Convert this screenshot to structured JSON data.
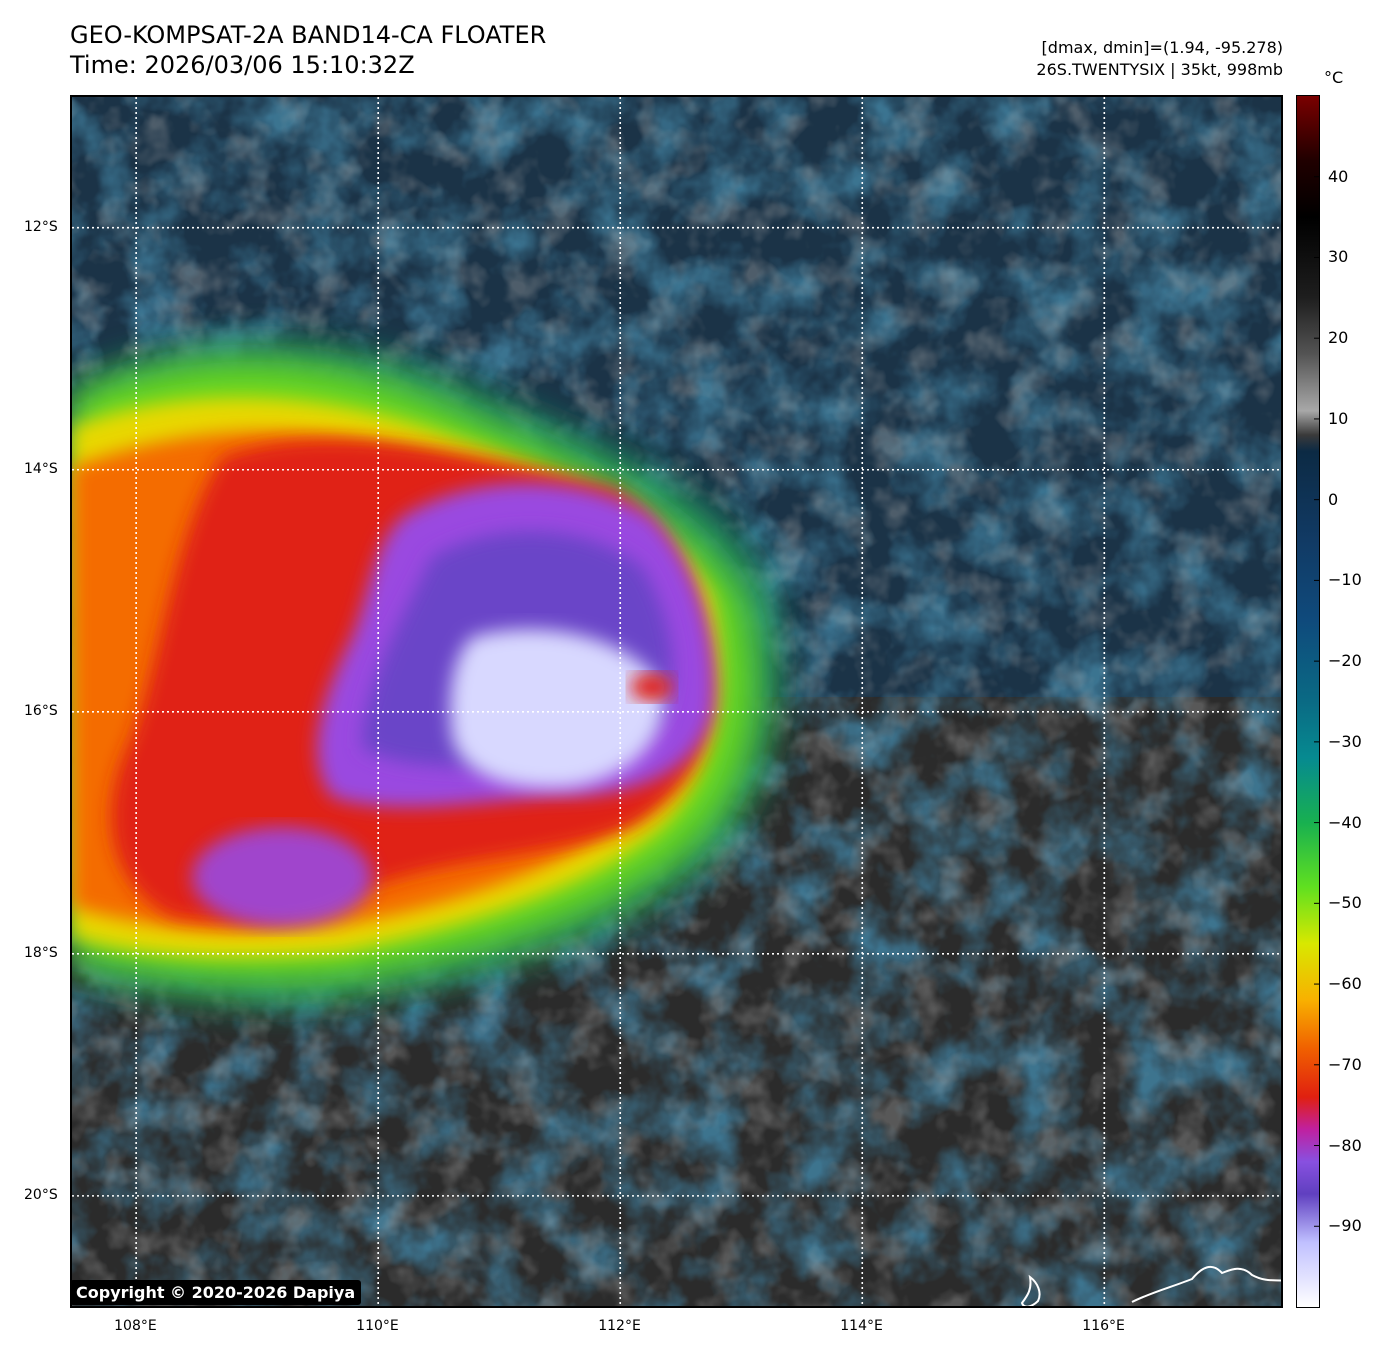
{
  "title": {
    "line1": "GEO-KOMPSAT-2A BAND14-CA FLOATER",
    "line2": "Time: 2026/03/06 15:10:32Z"
  },
  "info": {
    "line1": "[dmax, dmin]=(1.94, -95.278)",
    "line2": "26S.TWENTYSIX | 35kt, 998mb"
  },
  "copyright": "Copyright © 2020-2026 Dapiya",
  "map_extent": {
    "lon_min": 107.47,
    "lon_max": 117.46,
    "lat_max": -10.92,
    "lat_min": -20.91
  },
  "lon_ticks": [
    {
      "value": 108,
      "label": "108°E"
    },
    {
      "value": 110,
      "label": "110°E"
    },
    {
      "value": 112,
      "label": "112°E"
    },
    {
      "value": 114,
      "label": "114°E"
    },
    {
      "value": 116,
      "label": "116°E"
    }
  ],
  "lat_ticks": [
    {
      "value": -12,
      "label": "12°S"
    },
    {
      "value": -14,
      "label": "14°S"
    },
    {
      "value": -16,
      "label": "16°S"
    },
    {
      "value": -18,
      "label": "18°S"
    },
    {
      "value": -20,
      "label": "20°S"
    }
  ],
  "colorbar": {
    "unit": "°C",
    "min": -100,
    "max": 50,
    "ticks": [
      40,
      30,
      20,
      10,
      0,
      -10,
      -20,
      -30,
      -40,
      -50,
      -60,
      -70,
      -80,
      -90
    ],
    "ticks_text": [
      "40",
      "30",
      "20",
      "10",
      "0",
      "−10",
      "−20",
      "−30",
      "−40",
      "−50",
      "−60",
      "−70",
      "−80",
      "−90"
    ],
    "stops": [
      {
        "value": 50,
        "color": "#7a0000"
      },
      {
        "value": 42,
        "color": "#200000"
      },
      {
        "value": 35,
        "color": "#000000"
      },
      {
        "value": 25,
        "color": "#1e1e1e"
      },
      {
        "value": 18,
        "color": "#545454"
      },
      {
        "value": 11,
        "color": "#a8a8a8"
      },
      {
        "value": 8,
        "color": "#3a3a3a"
      },
      {
        "value": 6,
        "color": "#0c2a44"
      },
      {
        "value": -5,
        "color": "#113a64"
      },
      {
        "value": -15,
        "color": "#0f4a7c"
      },
      {
        "value": -25,
        "color": "#0a6a84"
      },
      {
        "value": -32,
        "color": "#068a90"
      },
      {
        "value": -40,
        "color": "#18b050"
      },
      {
        "value": -48,
        "color": "#60e020"
      },
      {
        "value": -55,
        "color": "#d8e800"
      },
      {
        "value": -62,
        "color": "#f8b000"
      },
      {
        "value": -68,
        "color": "#f06000"
      },
      {
        "value": -74,
        "color": "#e02010"
      },
      {
        "value": -78,
        "color": "#c020a0"
      },
      {
        "value": -82,
        "color": "#8850e0"
      },
      {
        "value": -86,
        "color": "#6040c0"
      },
      {
        "value": -92,
        "color": "#c0c0ff"
      },
      {
        "value": -100,
        "color": "#ffffff"
      }
    ]
  }
}
